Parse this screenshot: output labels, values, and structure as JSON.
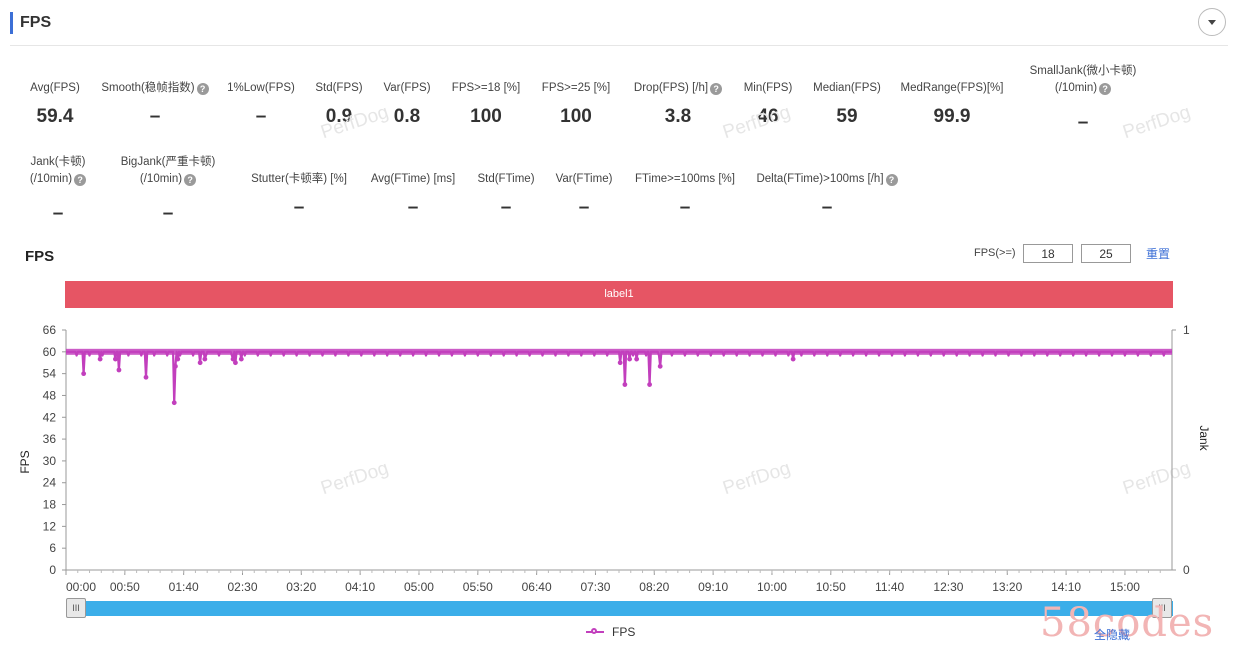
{
  "header": {
    "title": "FPS"
  },
  "metrics_row1": [
    {
      "label": "Avg(FPS)",
      "value": "59.4",
      "help": false
    },
    {
      "label": "Smooth(稳帧指数)",
      "value": "–",
      "help": true
    },
    {
      "label": "1%Low(FPS)",
      "value": "–",
      "help": false
    },
    {
      "label": "Std(FPS)",
      "value": "0.9",
      "help": false
    },
    {
      "label": "Var(FPS)",
      "value": "0.8",
      "help": false
    },
    {
      "label": "FPS>=18 [%]",
      "value": "100",
      "help": false
    },
    {
      "label": "FPS>=25 [%]",
      "value": "100",
      "help": false
    },
    {
      "label": "Drop(FPS) [/h]",
      "value": "3.8",
      "help": true
    },
    {
      "label": "Min(FPS)",
      "value": "46",
      "help": false
    },
    {
      "label": "Median(FPS)",
      "value": "59",
      "help": false
    },
    {
      "label": "MedRange(FPS)[%]",
      "value": "99.9",
      "help": false
    },
    {
      "label": "SmallJank(微小卡顿)",
      "label2": "(/10min)",
      "value": "–",
      "help": true
    }
  ],
  "metrics_row2": [
    {
      "label": "Jank(卡顿)",
      "label2": "(/10min)",
      "value": "–",
      "help": true
    },
    {
      "label": "BigJank(严重卡顿)",
      "label2": "(/10min)",
      "value": "–",
      "help": true
    },
    {
      "label": "Stutter(卡顿率) [%]",
      "value": "–",
      "help": false
    },
    {
      "label": "Avg(FTime) [ms]",
      "value": "–",
      "help": false
    },
    {
      "label": "Std(FTime)",
      "value": "–",
      "help": false
    },
    {
      "label": "Var(FTime)",
      "value": "–",
      "help": false
    },
    {
      "label": "FTime>=100ms [%]",
      "value": "–",
      "help": false
    },
    {
      "label": "Delta(FTime)>100ms [/h]",
      "value": "–",
      "help": true
    }
  ],
  "watermark": "PerfDog",
  "chart_section": {
    "title": "FPS",
    "threshold_label": "FPS(>=)",
    "threshold_1": "18",
    "threshold_2": "25",
    "reset_label": "重置",
    "label_bar": "label1"
  },
  "legend": {
    "series_label": "FPS",
    "hide_all": "全隐藏"
  },
  "brand": "58codes",
  "colors": {
    "accent": "#3c6fd6",
    "series": "#c23fbd",
    "label_bar": "#e65564",
    "slider": "#3baee9"
  },
  "chart_data": {
    "type": "line",
    "title": "FPS",
    "ylabel": "FPS",
    "y2label": "Jank",
    "ylim": [
      0,
      66
    ],
    "y_ticks": [
      "66",
      "60",
      "54",
      "48",
      "42",
      "36",
      "30",
      "24",
      "18",
      "12",
      "6",
      "0"
    ],
    "y2_ticks": [
      "1",
      "0"
    ],
    "x_ticks": [
      "00:00",
      "00:50",
      "01:40",
      "02:30",
      "03:20",
      "04:10",
      "05:00",
      "05:50",
      "06:40",
      "07:30",
      "08:20",
      "09:10",
      "10:00",
      "10:50",
      "11:40",
      "12:30",
      "13:20",
      "14:10",
      "15:00"
    ],
    "xlim_seconds": [
      0,
      940
    ],
    "grid": false,
    "series": [
      {
        "name": "FPS",
        "baseline": 60,
        "dips": [
          {
            "t": 15,
            "v": 54
          },
          {
            "t": 29,
            "v": 58
          },
          {
            "t": 42,
            "v": 58
          },
          {
            "t": 45,
            "v": 55
          },
          {
            "t": 68,
            "v": 53
          },
          {
            "t": 92,
            "v": 46
          },
          {
            "t": 93,
            "v": 56
          },
          {
            "t": 95,
            "v": 58
          },
          {
            "t": 114,
            "v": 57
          },
          {
            "t": 118,
            "v": 58
          },
          {
            "t": 142,
            "v": 58
          },
          {
            "t": 144,
            "v": 57
          },
          {
            "t": 149,
            "v": 58
          },
          {
            "t": 471,
            "v": 57
          },
          {
            "t": 475,
            "v": 51
          },
          {
            "t": 479,
            "v": 58
          },
          {
            "t": 485,
            "v": 58
          },
          {
            "t": 496,
            "v": 51
          },
          {
            "t": 505,
            "v": 56
          },
          {
            "t": 618,
            "v": 58
          }
        ]
      }
    ]
  }
}
